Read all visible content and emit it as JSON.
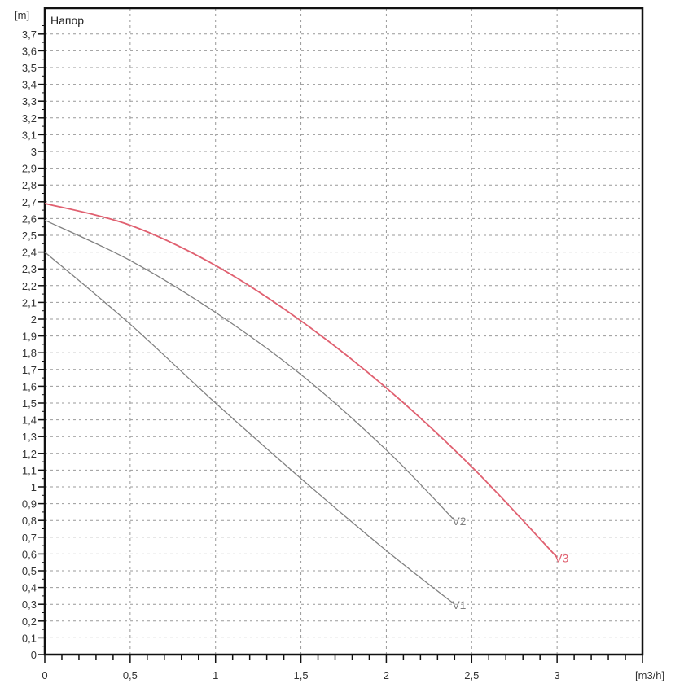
{
  "chart_data": {
    "type": "line",
    "title": "Напор",
    "xlabel": "[m3/h]",
    "ylabel": "[m]",
    "xlim": [
      0,
      3.5
    ],
    "ylim": [
      0,
      3.85
    ],
    "grid": true,
    "x_ticks": [
      "0",
      "0,5",
      "1",
      "1,5",
      "2",
      "2,5",
      "3"
    ],
    "x_tick_values": [
      0,
      0.5,
      1,
      1.5,
      2,
      2.5,
      3
    ],
    "y_ticks": [
      "0",
      "0,1",
      "0,2",
      "0,3",
      "0,4",
      "0,5",
      "0,6",
      "0,7",
      "0,8",
      "0,9",
      "1",
      "1,1",
      "1,2",
      "1,3",
      "1,4",
      "1,5",
      "1,6",
      "1,7",
      "1,8",
      "1,9",
      "2",
      "2,1",
      "2,2",
      "2,3",
      "2,4",
      "2,5",
      "2,6",
      "2,7",
      "2,8",
      "2,9",
      "3",
      "3,1",
      "3,2",
      "3,3",
      "3,4",
      "3,5",
      "3,6",
      "3,7"
    ],
    "series": [
      {
        "name": "V1",
        "color": "#808080",
        "x": [
          0,
          0.5,
          1,
          1.5,
          2,
          2.4
        ],
        "y": [
          2.4,
          1.97,
          1.5,
          1.05,
          0.62,
          0.3
        ]
      },
      {
        "name": "V2",
        "color": "#808080",
        "x": [
          0,
          0.5,
          1,
          1.5,
          2,
          2.4
        ],
        "y": [
          2.59,
          2.35,
          2.04,
          1.67,
          1.22,
          0.8
        ]
      },
      {
        "name": "V3",
        "color": "#e06070",
        "x": [
          0,
          0.5,
          1,
          1.5,
          2,
          2.5,
          3
        ],
        "y": [
          2.69,
          2.56,
          2.32,
          1.99,
          1.59,
          1.12,
          0.58
        ]
      }
    ]
  }
}
